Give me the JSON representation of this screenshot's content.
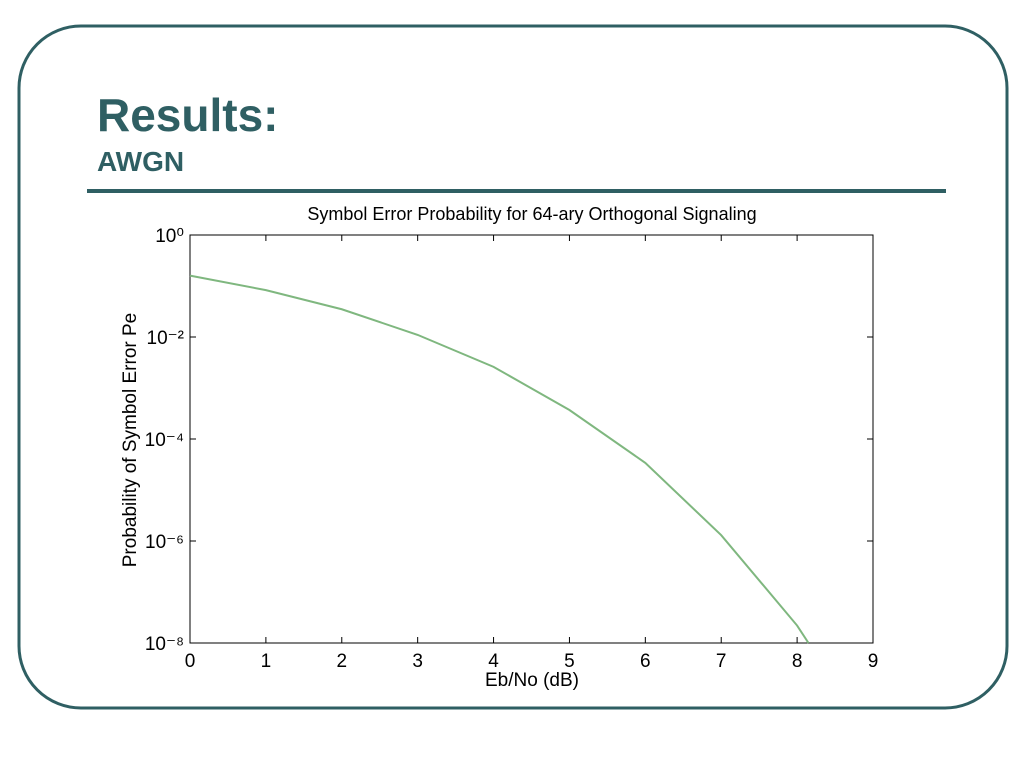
{
  "header": {
    "title": "Results:",
    "subtitle": "AWGN"
  },
  "chart_data": {
    "type": "line",
    "title": "Symbol Error Probability for 64-ary Orthogonal Signaling",
    "x_label": "Eb/No (dB)",
    "y_label": "Probability of Symbol Error Pe",
    "x": [
      0,
      1,
      2,
      3,
      4,
      5,
      6,
      7,
      8,
      8.15
    ],
    "values": [
      0.16,
      0.083,
      0.035,
      0.011,
      0.0026,
      0.00037,
      3.4e-05,
      1.3e-06,
      2.2e-08,
      1e-08
    ],
    "color": "#7fb77f",
    "xlim": [
      0,
      9
    ],
    "xticks": [
      0,
      1,
      2,
      3,
      4,
      5,
      6,
      7,
      8,
      9
    ],
    "ylim": [
      1e-08,
      1
    ],
    "log_y": true,
    "grid": false,
    "yticks": [
      {
        "value": 1,
        "label": "10⁰"
      },
      {
        "value": 0.01,
        "label": "10⁻²"
      },
      {
        "value": 0.0001,
        "label": "10⁻⁴"
      },
      {
        "value": 1e-06,
        "label": "10⁻⁶"
      },
      {
        "value": 1e-08,
        "label": "10⁻⁸"
      }
    ]
  }
}
